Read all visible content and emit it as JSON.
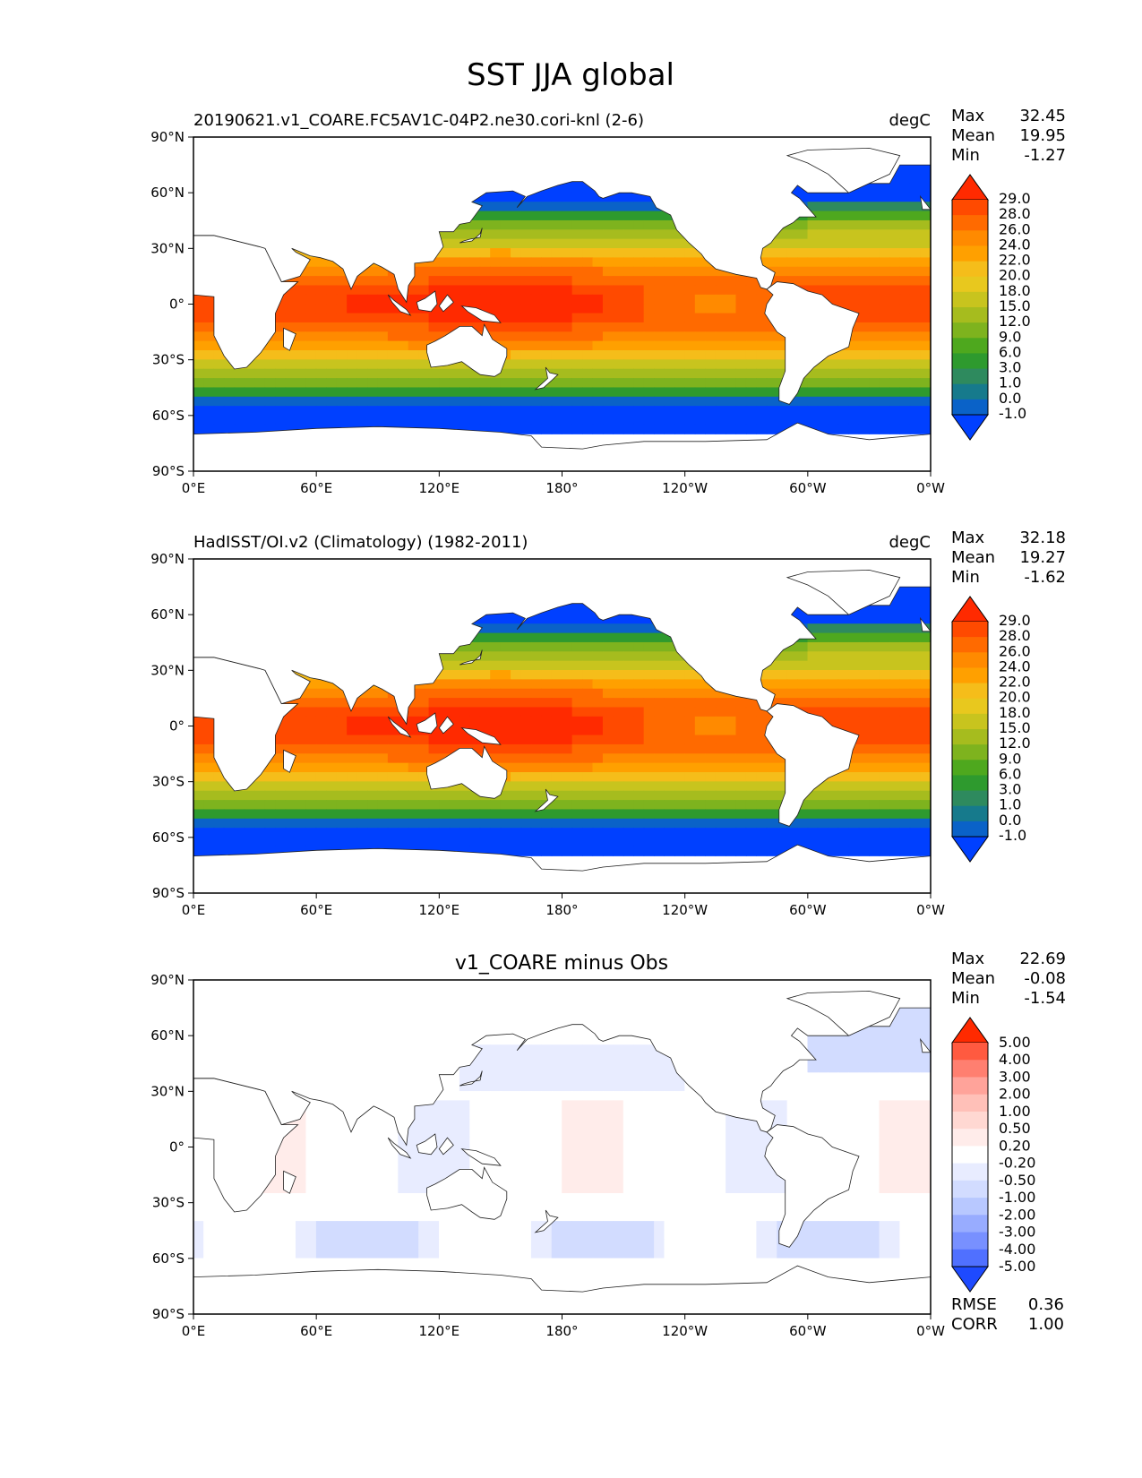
{
  "figure": {
    "title": "SST JJA global"
  },
  "panels": [
    {
      "id": "test",
      "left_label": "20190621.v1_COARE.FC5AV1C-04P2.ne30.cori-knl (2-6)",
      "center_label": "",
      "units": "degC",
      "stats": {
        "Max": "32.45",
        "Mean": "19.95",
        "Min": "-1.27"
      },
      "colorbar_levels": [
        "29.0",
        "28.0",
        "26.0",
        "24.0",
        "22.0",
        "20.0",
        "18.0",
        "15.0",
        "12.0",
        "9.0",
        "6.0",
        "3.0",
        "1.0",
        "0.0",
        "-1.0"
      ],
      "colorbar_colors": [
        "#ff2a00",
        "#ff4a00",
        "#ff6a00",
        "#ff8a00",
        "#ffa000",
        "#f5bd1a",
        "#e8c81e",
        "#c8c41e",
        "#a6bc1e",
        "#7eb31e",
        "#4ea81e",
        "#2e9a2e",
        "#2e8a5e",
        "#167a8c",
        "#0a62c8",
        "#0040ff"
      ]
    },
    {
      "id": "reference",
      "left_label": "HadISST/OI.v2 (Climatology) (1982-2011)",
      "center_label": "",
      "units": "degC",
      "stats": {
        "Max": "32.18",
        "Mean": "19.27",
        "Min": "-1.62"
      },
      "colorbar_levels": [
        "29.0",
        "28.0",
        "26.0",
        "24.0",
        "22.0",
        "20.0",
        "18.0",
        "15.0",
        "12.0",
        "9.0",
        "6.0",
        "3.0",
        "1.0",
        "0.0",
        "-1.0"
      ],
      "colorbar_colors": [
        "#ff2a00",
        "#ff4a00",
        "#ff6a00",
        "#ff8a00",
        "#ffa000",
        "#f5bd1a",
        "#e8c81e",
        "#c8c41e",
        "#a6bc1e",
        "#7eb31e",
        "#4ea81e",
        "#2e9a2e",
        "#2e8a5e",
        "#167a8c",
        "#0a62c8",
        "#0040ff"
      ]
    },
    {
      "id": "difference",
      "left_label": "",
      "center_label": "v1_COARE minus Obs",
      "units": "",
      "stats": {
        "Max": "22.69",
        "Mean": "-0.08",
        "Min": "-1.54"
      },
      "colorbar_levels": [
        "5.00",
        "4.00",
        "3.00",
        "2.00",
        "1.00",
        "0.50",
        "0.20",
        "-0.20",
        "-0.50",
        "-1.00",
        "-2.00",
        "-3.00",
        "-4.00",
        "-5.00"
      ],
      "colorbar_colors": [
        "#ff2a00",
        "#ff5a40",
        "#ff7f70",
        "#ffa39a",
        "#ffc0b8",
        "#ffd8d2",
        "#ffecea",
        "#ffffff",
        "#e8ecff",
        "#d2dcff",
        "#b8c8ff",
        "#98acff",
        "#7890ff",
        "#5070ff",
        "#1e4aff"
      ],
      "extra_stats": {
        "RMSE": "0.36",
        "CORR": "1.00"
      }
    }
  ],
  "axes": {
    "x_ticks": [
      "0°E",
      "60°E",
      "120°E",
      "180°",
      "120°W",
      "60°W",
      "0°W"
    ],
    "y_ticks": [
      "90°N",
      "60°N",
      "30°N",
      "0°",
      "30°S",
      "60°S",
      "90°S"
    ]
  }
}
